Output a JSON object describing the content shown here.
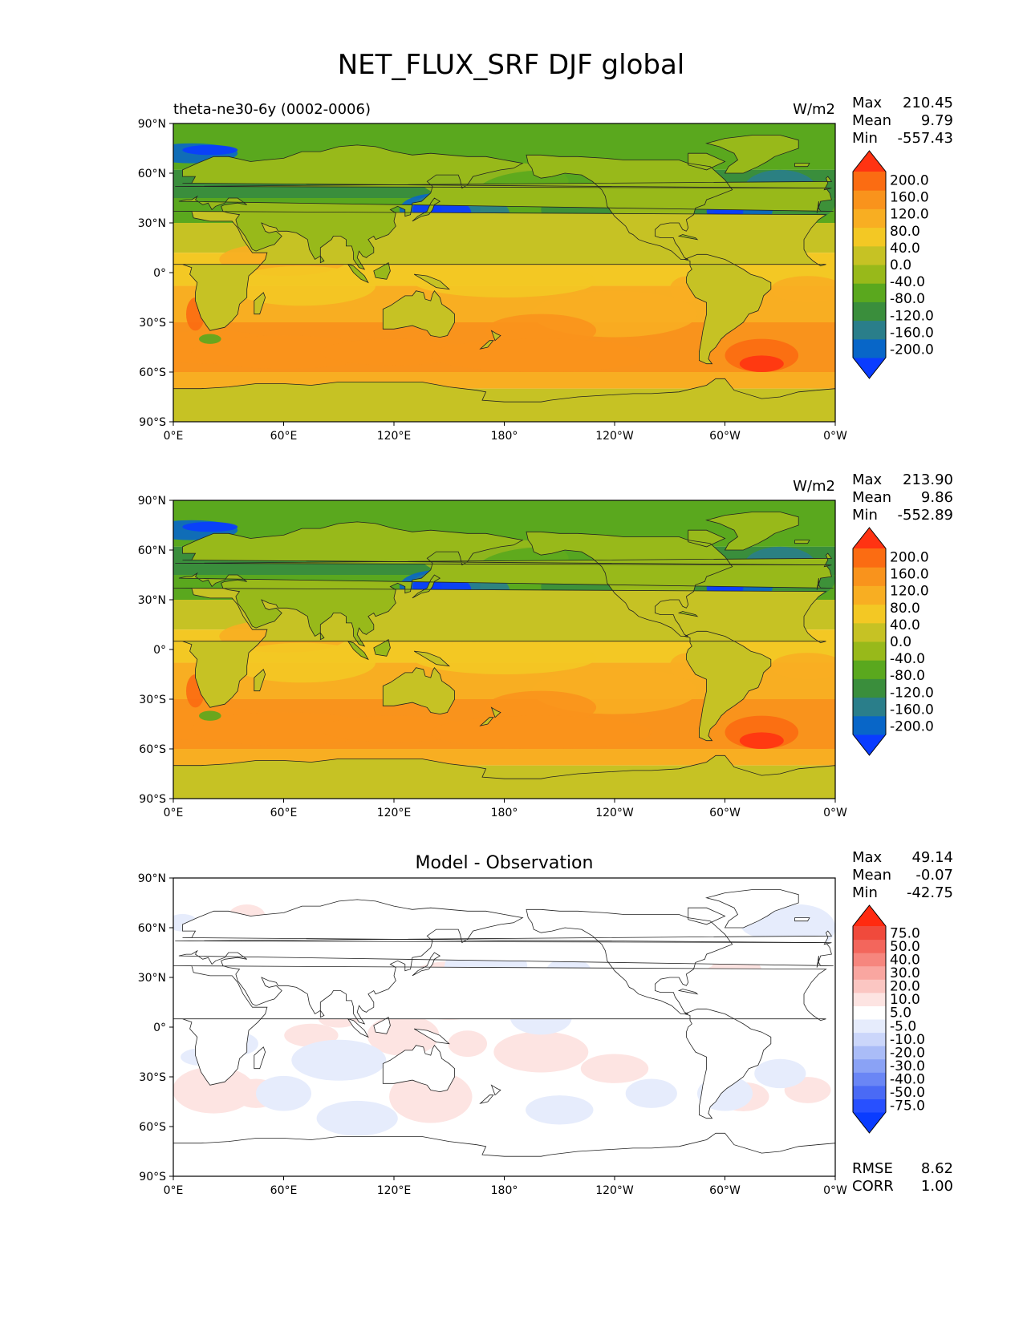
{
  "figure_title": "NET_FLUX_SRF DJF global",
  "lon_ticks": [
    "0°E",
    "60°E",
    "120°E",
    "180°",
    "120°W",
    "60°W",
    "0°W"
  ],
  "lat_ticks": [
    "90°N",
    "60°N",
    "30°N",
    "0°",
    "30°S",
    "60°S",
    "90°S"
  ],
  "colors": {
    "main_levels": [
      "#0a3cff",
      "#0866c8",
      "#2a7e8a",
      "#3a8e3c",
      "#5aa81e",
      "#98b91a",
      "#c6c224",
      "#f3c824",
      "#f8ae22",
      "#f9931c",
      "#fb6c12",
      "#ff3312"
    ],
    "diff_levels": [
      "#0a3cff",
      "#2850ff",
      "#4a6af5",
      "#6a86f5",
      "#8aa2f5",
      "#aabcf7",
      "#cbd6fa",
      "#e6ecfc",
      "#ffffff",
      "#fde4e2",
      "#fbc6c2",
      "#f9a6a0",
      "#f6867e",
      "#f3665c",
      "#f04a3c",
      "#ff2a10"
    ],
    "land": "#98b91a"
  },
  "panels": [
    {
      "id": "model",
      "left_title": "theta-ne30-6y (0002-0006)",
      "center_title": "",
      "units": "W/m2",
      "stats": [
        {
          "label": "Max",
          "value": "210.45"
        },
        {
          "label": "Mean",
          "value": "9.79"
        },
        {
          "label": "Min",
          "value": "-557.43"
        }
      ],
      "colorbar_labels": [
        "200.0",
        "160.0",
        "120.0",
        "80.0",
        "40.0",
        "0.0",
        "-40.0",
        "-80.0",
        "-120.0",
        "-160.0",
        "-200.0"
      ],
      "extra_stats": []
    },
    {
      "id": "observation",
      "left_title": "",
      "center_title": "",
      "units": "W/m2",
      "stats": [
        {
          "label": "Max",
          "value": "213.90"
        },
        {
          "label": "Mean",
          "value": "9.86"
        },
        {
          "label": "Min",
          "value": "-552.89"
        }
      ],
      "colorbar_labels": [
        "200.0",
        "160.0",
        "120.0",
        "80.0",
        "40.0",
        "0.0",
        "-40.0",
        "-80.0",
        "-120.0",
        "-160.0",
        "-200.0"
      ],
      "extra_stats": []
    },
    {
      "id": "difference",
      "left_title": "",
      "center_title": "Model - Observation",
      "units": "",
      "stats": [
        {
          "label": "Max",
          "value": "49.14"
        },
        {
          "label": "Mean",
          "value": "-0.07"
        },
        {
          "label": "Min",
          "value": "-42.75"
        }
      ],
      "colorbar_labels": [
        "75.0",
        "50.0",
        "40.0",
        "30.0",
        "20.0",
        "10.0",
        "5.0",
        "-5.0",
        "-10.0",
        "-20.0",
        "-30.0",
        "-40.0",
        "-50.0",
        "-75.0"
      ],
      "extra_stats": [
        {
          "label": "RMSE",
          "value": "8.62"
        },
        {
          "label": "CORR",
          "value": "1.00"
        }
      ]
    }
  ]
}
